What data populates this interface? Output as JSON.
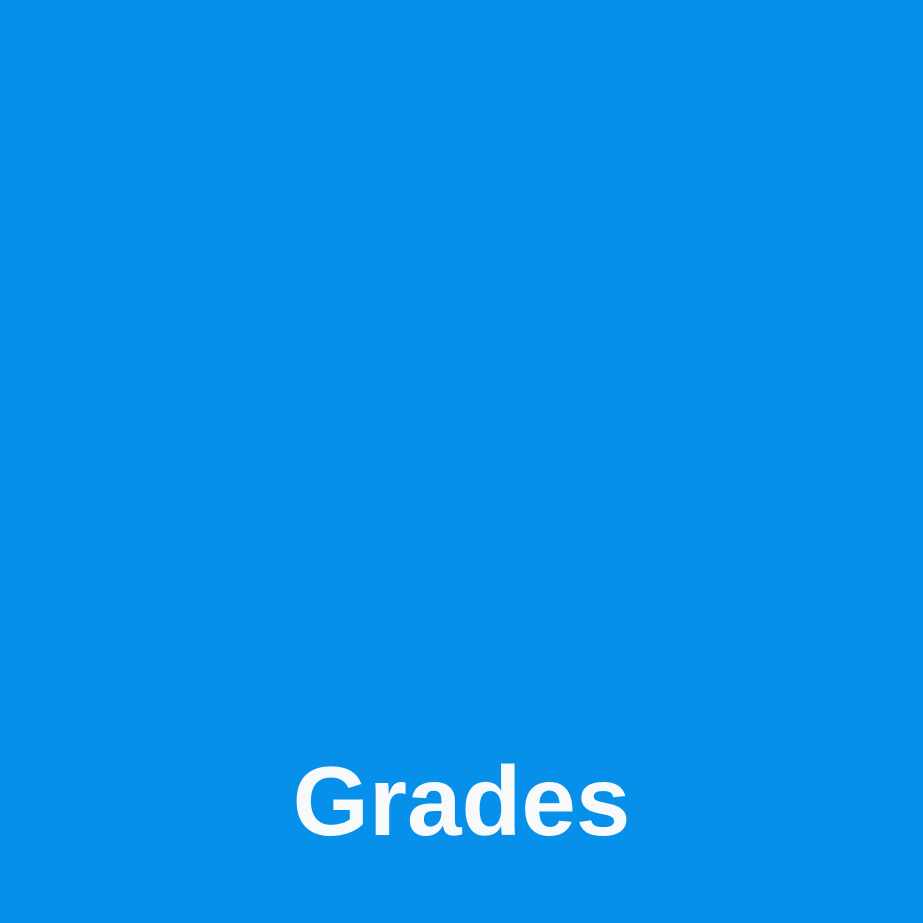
{
  "tile": {
    "label": "Grades",
    "background_color": "#0690ea",
    "text_color": "#f7f9fb"
  }
}
